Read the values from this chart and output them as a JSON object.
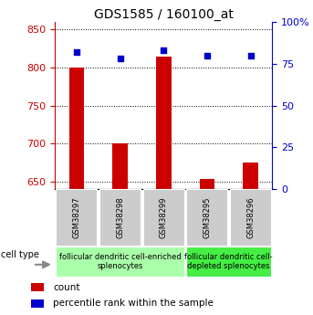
{
  "title": "GDS1585 / 160100_at",
  "samples": [
    "GSM38297",
    "GSM38298",
    "GSM38299",
    "GSM38295",
    "GSM38296"
  ],
  "counts": [
    800,
    700,
    815,
    653,
    675
  ],
  "percentiles": [
    82,
    78,
    83,
    80,
    80
  ],
  "ylim_left": [
    640,
    860
  ],
  "ylim_right": [
    0,
    100
  ],
  "yticks_left": [
    650,
    700,
    750,
    800,
    850
  ],
  "yticks_right": [
    0,
    25,
    50,
    75,
    100
  ],
  "bar_color": "#cc0000",
  "dot_color": "#0000cc",
  "bar_width": 0.35,
  "groups": [
    {
      "label": "follicular dendritic cell-enriched\nsplenocytes",
      "color": "#aaffaa",
      "start": 0,
      "end": 3
    },
    {
      "label": "follicular dendritic cell-\ndepleted splenocytes",
      "color": "#44ee44",
      "start": 3,
      "end": 5
    }
  ],
  "cell_type_label": "cell type",
  "legend_count_label": "count",
  "legend_percentile_label": "percentile rank within the sample",
  "title_fontsize": 10,
  "tick_fontsize": 8,
  "label_fontsize": 8,
  "sample_fontsize": 6,
  "group_fontsize": 6
}
